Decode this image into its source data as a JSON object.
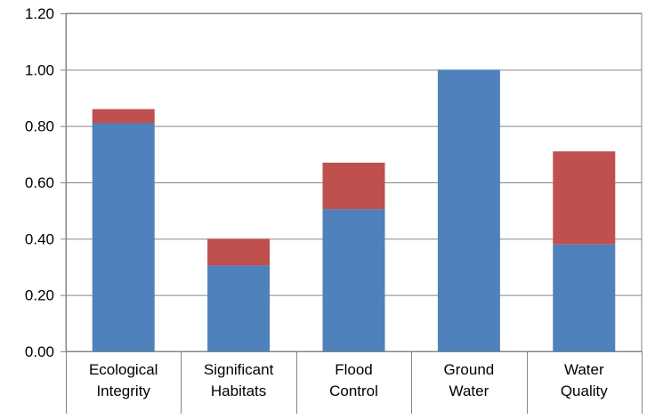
{
  "chart_data": {
    "type": "bar",
    "stacked": true,
    "categories": [
      [
        "Ecological",
        "Integrity"
      ],
      [
        "Significant",
        "Habitats"
      ],
      [
        "Flood",
        "Control"
      ],
      [
        "Ground",
        "Water"
      ],
      [
        "Water",
        "Quality"
      ]
    ],
    "series": [
      {
        "values": [
          0.81,
          0.305,
          0.505,
          1.0,
          0.38
        ],
        "color": "#4f81bd"
      },
      {
        "values": [
          0.05,
          0.095,
          0.165,
          0.0,
          0.33
        ],
        "color": "#c0504d"
      }
    ],
    "y_ticks": [
      "0.00",
      "0.20",
      "0.40",
      "0.60",
      "0.80",
      "1.00",
      "1.20"
    ],
    "ylim": [
      0,
      1.2
    ],
    "grid": true,
    "legend": "none"
  }
}
